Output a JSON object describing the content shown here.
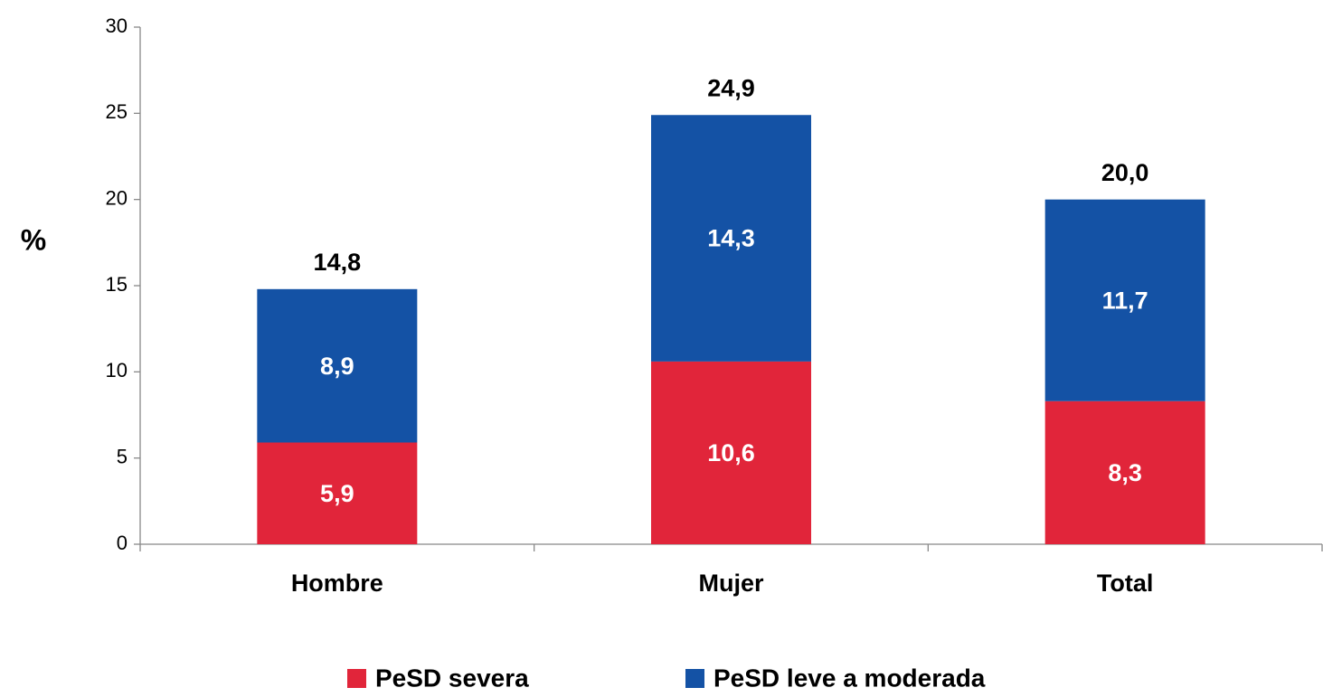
{
  "chart_data": {
    "type": "stacked-bar",
    "ylabel": "%",
    "categories": [
      "Hombre",
      "Mujer",
      "Total"
    ],
    "series": [
      {
        "name": "PeSD severa",
        "color": "#e1253a",
        "values": [
          5.9,
          10.6,
          8.3
        ],
        "value_labels": [
          "5,9",
          "10,6",
          "8,3"
        ]
      },
      {
        "name": "PeSD leve a moderada",
        "color": "#1452a5",
        "values": [
          8.9,
          14.3,
          11.7
        ],
        "value_labels": [
          "8,9",
          "14,3",
          "11,7"
        ]
      }
    ],
    "totals": [
      14.8,
      24.9,
      20.0
    ],
    "total_labels": [
      "14,8",
      "24,9",
      "20,0"
    ],
    "ylim": [
      0,
      30
    ],
    "yticks": [
      0,
      5,
      10,
      15,
      20,
      25,
      30
    ],
    "legend": "bottom"
  }
}
